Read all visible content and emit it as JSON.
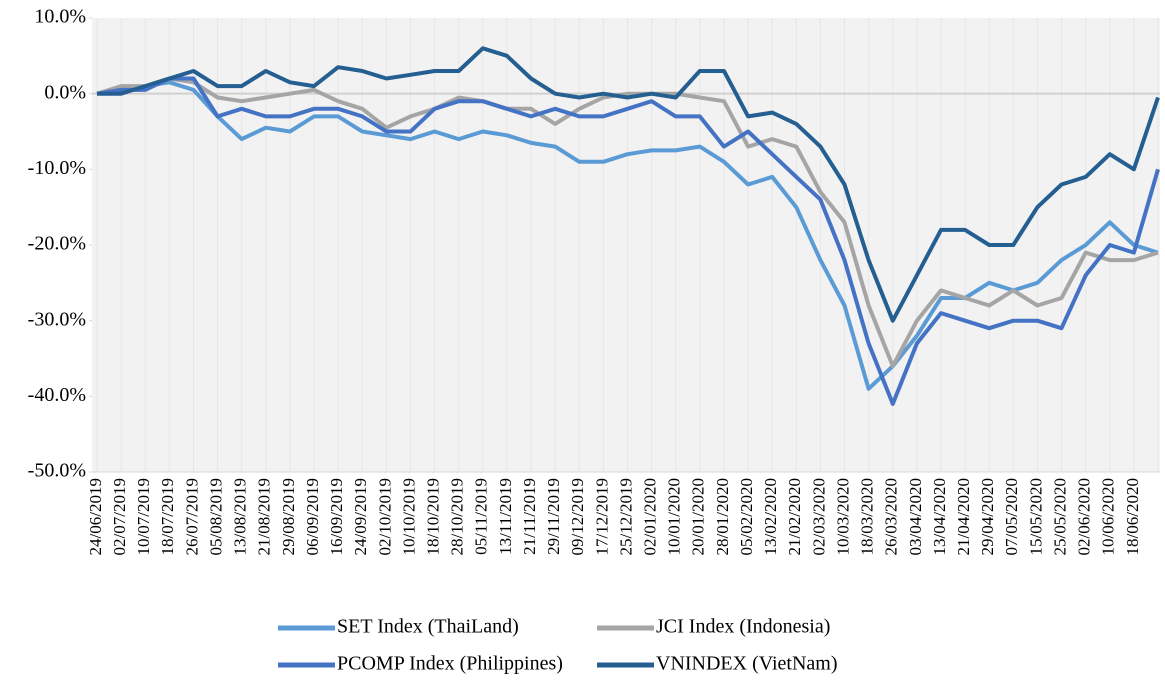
{
  "chart_data": {
    "type": "line",
    "categories": [
      "24/06/2019",
      "02/07/2019",
      "10/07/2019",
      "18/07/2019",
      "26/07/2019",
      "05/08/2019",
      "13/08/2019",
      "21/08/2019",
      "29/08/2019",
      "06/09/2019",
      "16/09/2019",
      "24/09/2019",
      "02/10/2019",
      "10/10/2019",
      "18/10/2019",
      "28/10/2019",
      "05/11/2019",
      "13/11/2019",
      "21/11/2019",
      "29/11/2019",
      "09/12/2019",
      "17/12/2019",
      "25/12/2019",
      "02/01/2020",
      "10/01/2020",
      "20/01/2020",
      "28/01/2020",
      "05/02/2020",
      "13/02/2020",
      "21/02/2020",
      "02/03/2020",
      "10/03/2020",
      "18/03/2020",
      "26/03/2020",
      "03/04/2020",
      "13/04/2020",
      "21/04/2020",
      "29/04/2020",
      "07/05/2020",
      "15/05/2020",
      "25/05/2020",
      "02/06/2020",
      "10/06/2020",
      "18/06/2020",
      null
    ],
    "series": [
      {
        "name": "SET Index (ThaiLand)",
        "color": "#5b9bd5",
        "values": [
          0,
          0.5,
          1,
          1.5,
          0.5,
          -3,
          -6,
          -4.5,
          -5,
          -3,
          -3,
          -5,
          -5.5,
          -6,
          -5,
          -6,
          -5,
          -5.5,
          -6.5,
          -7,
          -9,
          -9,
          -8,
          -7.5,
          -7.5,
          -7,
          -9,
          -12,
          -11,
          -15,
          -22,
          -28,
          -39,
          -36,
          -32,
          -27,
          -27,
          -25,
          -26,
          -25,
          -22,
          -20,
          -17,
          -20,
          -21
        ]
      },
      {
        "name": "JCI Index (Indonesia)",
        "color": "#a5a5a5",
        "values": [
          0,
          1,
          1,
          2,
          1.5,
          -0.5,
          -1,
          -0.5,
          0,
          0.5,
          -1,
          -2,
          -4.5,
          -3,
          -2,
          -0.5,
          -1,
          -2,
          -2,
          -4,
          -2,
          -0.5,
          0,
          0,
          0,
          -0.5,
          -1,
          -7,
          -6,
          -7,
          -13,
          -17,
          -28,
          -36,
          -30,
          -26,
          -27,
          -28,
          -26,
          -28,
          -27,
          -21,
          -22,
          -22,
          -21
        ]
      },
      {
        "name": "PCOMP Index (Philippines)",
        "color": "#4472c4",
        "values": [
          0,
          0.5,
          0.5,
          2,
          2,
          -3,
          -2,
          -3,
          -3,
          -2,
          -2,
          -3,
          -5,
          -5,
          -2,
          -1,
          -1,
          -2,
          -3,
          -2,
          -3,
          -3,
          -2,
          -1,
          -3,
          -3,
          -7,
          -5,
          -8,
          -11,
          -14,
          -22,
          -33,
          -41,
          -33,
          -29,
          -30,
          -31,
          -30,
          -30,
          -31,
          -24,
          -20,
          -21,
          -10
        ]
      },
      {
        "name": "VNINDEX (VietNam)",
        "color": "#255e91",
        "values": [
          0,
          0,
          1,
          2,
          3,
          1,
          1,
          3,
          1.5,
          1,
          3.5,
          3,
          2,
          2.5,
          3,
          3,
          6,
          5,
          2,
          0,
          -0.5,
          0,
          -0.5,
          0,
          -0.5,
          3,
          3,
          -3,
          -2.5,
          -4,
          -7,
          -12,
          -22,
          -30,
          -24,
          -18,
          -18,
          -20,
          -20,
          -15,
          -12,
          -11,
          -8,
          -10,
          -0.5
        ]
      }
    ],
    "ylim": [
      -50,
      10
    ],
    "yticks": [
      {
        "value": 10,
        "label": "10.0%"
      },
      {
        "value": 0,
        "label": "0.0%"
      },
      {
        "value": -10,
        "label": "-10.0%"
      },
      {
        "value": -20,
        "label": "-20.0%"
      },
      {
        "value": -30,
        "label": "-30.0%"
      },
      {
        "value": -40,
        "label": "-40.0%"
      },
      {
        "value": -50,
        "label": "-50.0%"
      }
    ],
    "legend": "bottom"
  }
}
